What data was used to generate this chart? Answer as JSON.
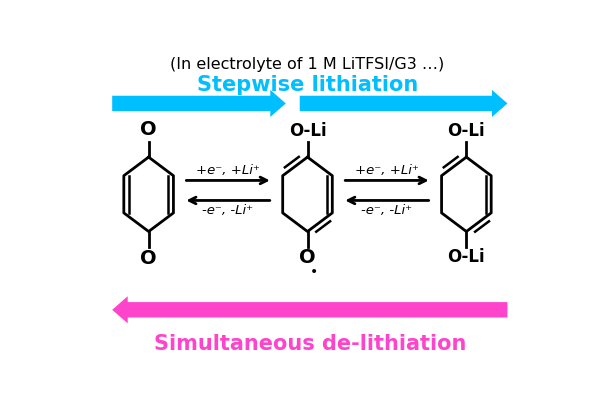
{
  "bg_color": "#ffffff",
  "title_text": "(In electrolyte of 1 M LiTFSI/G3 …)",
  "title_fontsize": 11.5,
  "stepwise_label": "Stepwise lithiation",
  "stepwise_color": "#00bfff",
  "stepwise_fontsize": 15,
  "delithiation_label": "Simultaneous de-lithiation",
  "delithiation_color": "#ff44cc",
  "delithiation_fontsize": 15,
  "arrow_cyan": "#00bfff",
  "arrow_magenta": "#ff44cc",
  "m1x": 0.95,
  "m1y": 2.1,
  "m2x": 3.0,
  "m2y": 2.1,
  "m3x": 5.05,
  "m3y": 2.1,
  "ring_scale": 0.42,
  "inner_scale": 0.3
}
